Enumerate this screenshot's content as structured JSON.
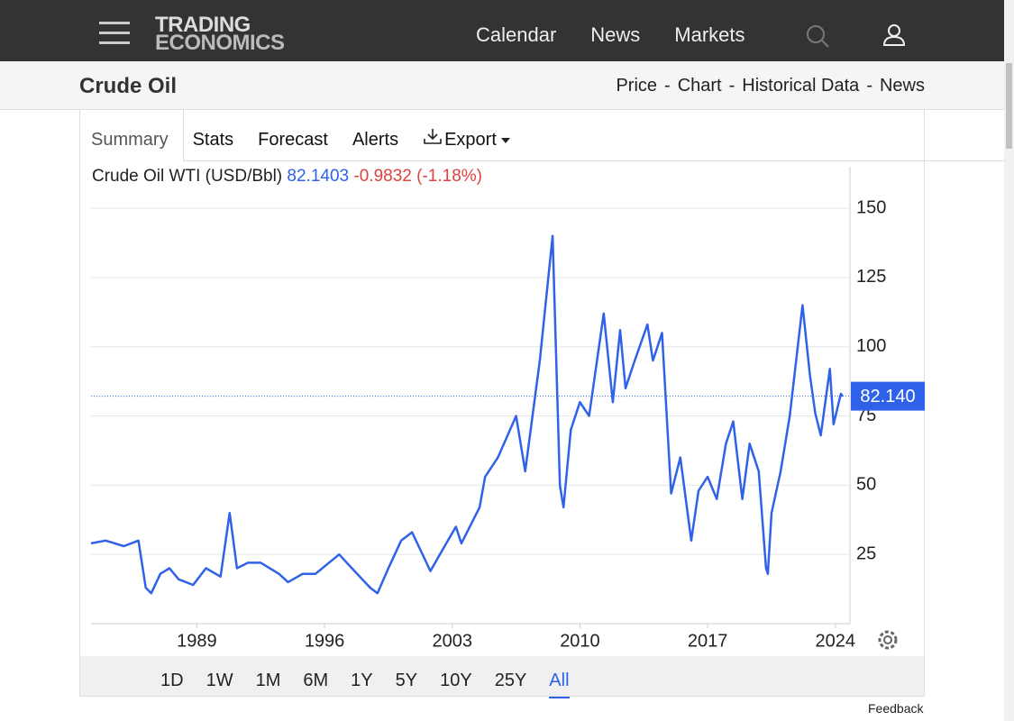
{
  "header": {
    "logo_top": "TRADING",
    "logo_bottom": "ECONOMICS",
    "nav": [
      "Calendar",
      "News",
      "Markets"
    ]
  },
  "page": {
    "title": "Crude Oil",
    "links": [
      "Price",
      "Chart",
      "Historical Data",
      "News"
    ],
    "separator": "-"
  },
  "tabs": [
    "Summary",
    "Stats",
    "Forecast",
    "Alerts",
    "Export"
  ],
  "chart_data": {
    "type": "line",
    "legend": {
      "name": "Crude Oil WTI (USD/Bbl)",
      "price": "82.1403",
      "change": "-0.9832",
      "change_pct": "(-1.18%)"
    },
    "current_value": 82.1403,
    "current_label": "82.140",
    "color": "#2f62e8",
    "x": [
      1983.2,
      1984,
      1985,
      1985.8,
      1986.2,
      1986.5,
      1987,
      1987.5,
      1988,
      1988.8,
      1989.5,
      1990.3,
      1990.8,
      1991.2,
      1991.8,
      1992.5,
      1993.5,
      1994,
      1994.8,
      1995.5,
      1996.8,
      1997.5,
      1998.5,
      1998.9,
      1999.5,
      2000.2,
      2000.8,
      2001.8,
      2002.5,
      2003.2,
      2003.5,
      2004.5,
      2004.8,
      2005.5,
      2006.5,
      2007,
      2007.8,
      2008.5,
      2008.9,
      2009.1,
      2009.5,
      2010,
      2010.5,
      2011.3,
      2011.8,
      2012.2,
      2012.5,
      2013,
      2013.7,
      2014,
      2014.5,
      2015,
      2015.5,
      2016.1,
      2016.5,
      2017,
      2017.5,
      2018,
      2018.4,
      2018.9,
      2019.3,
      2019.8,
      2020.2,
      2020.3,
      2020.5,
      2021,
      2021.5,
      2022.2,
      2022.6,
      2022.9,
      2023.2,
      2023.7,
      2023.9,
      2024.3,
      2024.4
    ],
    "values": [
      29,
      30,
      28,
      30,
      13,
      11,
      18,
      20,
      16,
      14,
      20,
      17,
      40,
      20,
      22,
      22,
      18,
      15,
      18,
      18,
      25,
      20,
      13,
      11,
      20,
      30,
      33,
      19,
      27,
      35,
      29,
      42,
      53,
      60,
      75,
      55,
      95,
      140,
      50,
      42,
      70,
      80,
      75,
      112,
      80,
      106,
      85,
      95,
      108,
      95,
      105,
      47,
      60,
      30,
      48,
      53,
      45,
      65,
      73,
      45,
      65,
      55,
      20,
      18,
      40,
      55,
      75,
      115,
      90,
      76,
      68,
      92,
      72,
      83,
      82.1403
    ],
    "xlim": [
      1983.2,
      2024.8
    ],
    "xticks": [
      1989,
      1996,
      2003,
      2010,
      2017,
      2024
    ],
    "ylim": [
      0,
      165
    ],
    "yticks": [
      25,
      50,
      75,
      100,
      125,
      150
    ],
    "grid": true
  },
  "ranges": [
    "1D",
    "1W",
    "1M",
    "6M",
    "1Y",
    "5Y",
    "10Y",
    "25Y",
    "All"
  ],
  "feedback": "Feedback"
}
